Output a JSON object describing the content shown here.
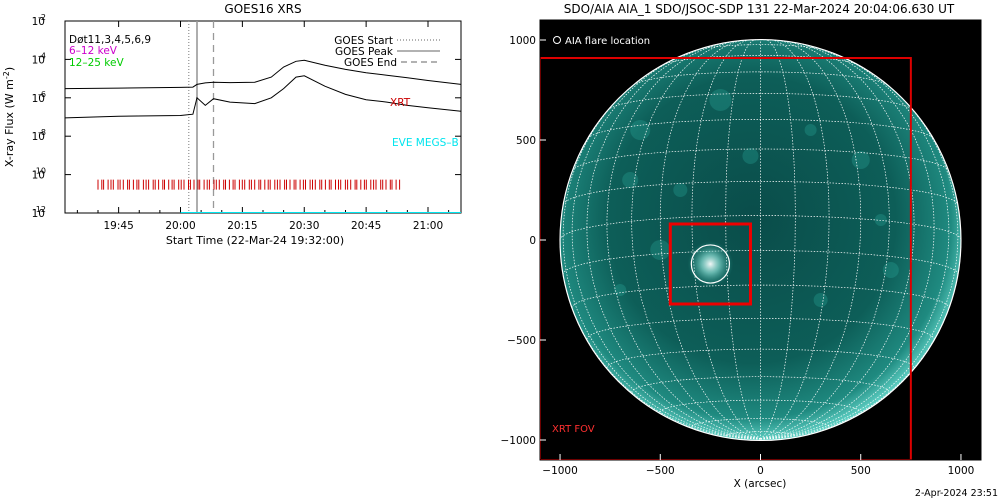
{
  "left_panel": {
    "title": "GOES16 XRS",
    "ylabel": "X-ray Flux (W m",
    "ylabel_sup": "-2",
    "ylabel_close": ")",
    "xlabel": "Start Time (22-Mar-24 19:32:00)",
    "det_label": "Døt11,3,4,5,6,9",
    "energy_bands": [
      {
        "label": "6–12 keV",
        "color": "#cc00cc"
      },
      {
        "label": "12–25 keV",
        "color": "#00cc00"
      }
    ],
    "legend": [
      {
        "label": "GOES Start",
        "style": "dotted"
      },
      {
        "label": "GOES Peak",
        "style": "solid"
      },
      {
        "label": "GOES End",
        "style": "dashed"
      }
    ],
    "annotations": {
      "xrt": {
        "label": "XRT",
        "color": "#cc0000"
      },
      "eve": {
        "label": "EVE MEGS–B",
        "color": "#00e5ee"
      }
    },
    "colors": {
      "curve": "#000000",
      "markers": "#cc0000",
      "eve_line": "#00e5ee",
      "event_line": "#999999"
    }
  },
  "right_panel": {
    "title": "SDO/AIA AIA_1 SDO/JSOC-SDP 131 22-Mar-2024 20:04:06.630 UT",
    "legend_label": "AIA flare location",
    "fov_label": "XRT FOV",
    "xlabel": "X (arcsec)",
    "colors": {
      "fov": "#dd0000",
      "fov_label": "#ff3030",
      "box": "#ee0000",
      "grid": "#ffffff",
      "disk": "#0c5a55"
    }
  },
  "footer": {
    "timestamp": "2-Apr-2024 23:51"
  },
  "chart_data": [
    {
      "type": "line",
      "title": "GOES16 XRS",
      "xlabel": "Start Time (22-Mar-24 19:32:00)",
      "ylabel": "X-ray Flux (W m-2)",
      "y_scale": "log",
      "xlim": [
        "19:32",
        "21:08"
      ],
      "ylim": [
        1e-12,
        0.01
      ],
      "x_ticks": [
        "19:45",
        "20:00",
        "20:15",
        "20:30",
        "20:45",
        "21:00"
      ],
      "y_ticks": [
        {
          "value": 1e-12,
          "base": "10",
          "exp": "-12"
        },
        {
          "value": 1e-10,
          "base": "10",
          "exp": "-10"
        },
        {
          "value": 1e-08,
          "base": "10",
          "exp": "-8"
        },
        {
          "value": 1e-06,
          "base": "10",
          "exp": "-6"
        },
        {
          "value": 0.0001,
          "base": "10",
          "exp": "-4"
        },
        {
          "value": 0.01,
          "base": "10",
          "exp": "-2"
        }
      ],
      "event_lines": [
        {
          "name": "GOES Start",
          "time": "20:02",
          "style": "dotted"
        },
        {
          "name": "GOES Peak",
          "time": "20:04",
          "style": "solid"
        },
        {
          "name": "GOES End",
          "time": "20:08",
          "style": "dashed"
        }
      ],
      "series": [
        {
          "id": "long",
          "x": [
            "19:32",
            "19:45",
            "20:00",
            "20:03",
            "20:04",
            "20:06",
            "20:08",
            "20:12",
            "20:18",
            "20:22",
            "20:25",
            "20:28",
            "20:30",
            "20:35",
            "20:40",
            "20:45",
            "20:50",
            "20:55",
            "21:00",
            "21:08"
          ],
          "y": [
            3e-06,
            3.2e-06,
            3.5e-06,
            3.6e-06,
            5e-06,
            6e-06,
            6.5e-06,
            6.2e-06,
            6.5e-06,
            1.2e-05,
            4e-05,
            8e-05,
            9e-05,
            5e-05,
            3e-05,
            2e-05,
            1.5e-05,
            1.1e-05,
            8e-06,
            5e-06
          ]
        },
        {
          "id": "short",
          "x": [
            "19:32",
            "19:45",
            "20:00",
            "20:03",
            "20:04",
            "20:06",
            "20:08",
            "20:12",
            "20:18",
            "20:22",
            "20:25",
            "20:28",
            "20:30",
            "20:35",
            "20:40",
            "20:45",
            "20:50",
            "20:55",
            "21:00",
            "21:08"
          ],
          "y": [
            9e-08,
            1.1e-07,
            1.2e-07,
            1.4e-07,
            1e-06,
            4e-07,
            9e-07,
            6e-07,
            5e-07,
            1e-06,
            3e-06,
            1.2e-05,
            1.4e-05,
            4e-06,
            1.5e-06,
            8e-07,
            6e-07,
            4e-07,
            3e-07,
            2e-07
          ]
        },
        {
          "id": "eve",
          "name": "EVE MEGS–B",
          "x": [
            "20:00",
            "21:08"
          ],
          "y": [
            1e-12,
            1e-12
          ]
        }
      ],
      "xrt_observations": {
        "start": "19:40",
        "end": "20:53",
        "flux": 3e-11,
        "count": 95
      }
    },
    {
      "type": "scatter",
      "title": "SDO/AIA AIA_1 SDO/JSOC-SDP 131 22-Mar-2024 20:04:06.630 UT",
      "xlabel": "X (arcsec)",
      "xlim": [
        -1100,
        1100
      ],
      "ylim": [
        -1100,
        1100
      ],
      "x_ticks": [
        -1000,
        -500,
        0,
        500,
        1000
      ],
      "y_ticks": [
        -1000,
        -500,
        0,
        500,
        1000
      ],
      "solar_radius": 1000,
      "grid_step_deg": 10,
      "flare_location": {
        "x": -250,
        "y": -120,
        "radius": 95
      },
      "zoom_box": {
        "x": [
          -450,
          -50
        ],
        "y": [
          -320,
          80
        ]
      },
      "xrt_fov": {
        "x": [
          -1100,
          750
        ],
        "y": [
          -1100,
          910
        ]
      }
    }
  ]
}
